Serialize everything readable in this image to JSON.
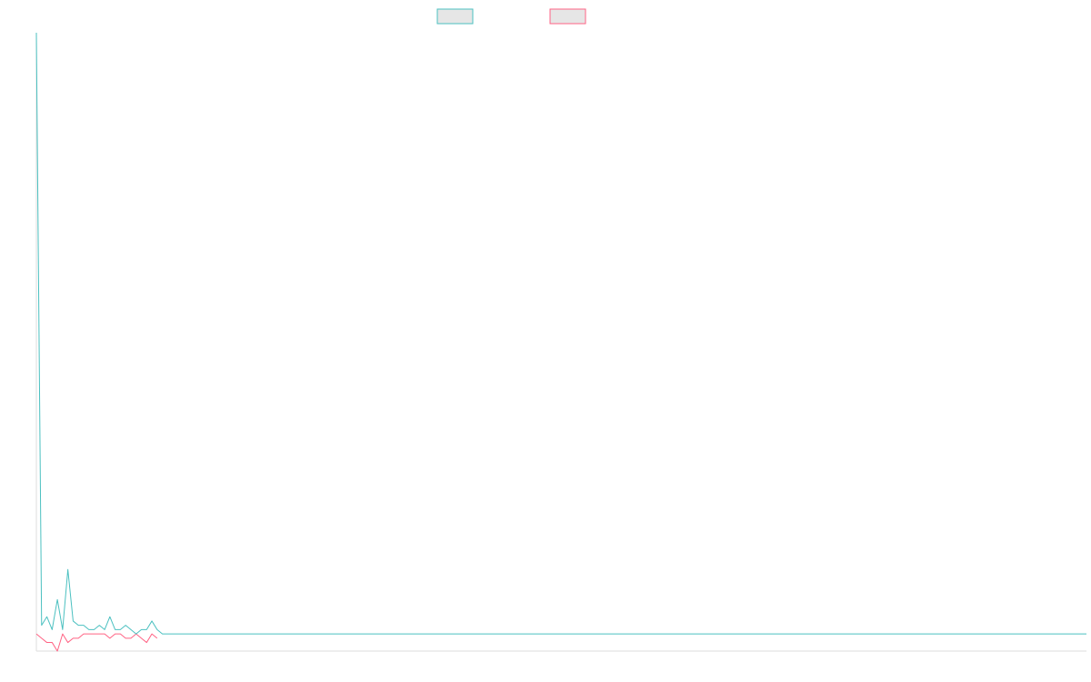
{
  "colors": {
    "series_a": "#4bc0c0",
    "series_b": "#ff6384",
    "legend_fill": "#e6e6e6",
    "axis": "#dddddd"
  },
  "legend": {
    "placement": "top-center",
    "items": [
      {
        "color": "#4bc0c0",
        "label": ""
      },
      {
        "color": "#ff6384",
        "label": ""
      }
    ]
  },
  "chart_data": {
    "type": "line",
    "title": "",
    "xlabel": "",
    "ylabel": "",
    "grid": false,
    "legend_placement": "top-center",
    "xlim": [
      0,
      200
    ],
    "ylim": [
      -4,
      140
    ],
    "series": [
      {
        "color": "#4bc0c0",
        "values": [
          140,
          2,
          4,
          1,
          8,
          1,
          15,
          3,
          2,
          2,
          1,
          1,
          2,
          1,
          4,
          1,
          1,
          2,
          1,
          0,
          1,
          1,
          3,
          1,
          0,
          0,
          0,
          0,
          0,
          0,
          0,
          0,
          0,
          0,
          0,
          0,
          0,
          0,
          0,
          0,
          0,
          0,
          0,
          0,
          0,
          0,
          0,
          0,
          0,
          0,
          0,
          0,
          0,
          0,
          0,
          0,
          0,
          0,
          0,
          0,
          0,
          0,
          0,
          0,
          0,
          0,
          0,
          0,
          0,
          0,
          0,
          0,
          0,
          0,
          0,
          0,
          0,
          0,
          0,
          0,
          0,
          0,
          0,
          0,
          0,
          0,
          0,
          0,
          0,
          0,
          0,
          0,
          0,
          0,
          0,
          0,
          0,
          0,
          0,
          0,
          0,
          0,
          0,
          0,
          0,
          0,
          0,
          0,
          0,
          0,
          0,
          0,
          0,
          0,
          0,
          0,
          0,
          0,
          0,
          0,
          0,
          0,
          0,
          0,
          0,
          0,
          0,
          0,
          0,
          0,
          0,
          0,
          0,
          0,
          0,
          0,
          0,
          0,
          0,
          0,
          0,
          0,
          0,
          0,
          0,
          0,
          0,
          0,
          0,
          0,
          0,
          0,
          0,
          0,
          0,
          0,
          0,
          0,
          0,
          0,
          0,
          0,
          0,
          0,
          0,
          0,
          0,
          0,
          0,
          0,
          0,
          0,
          0,
          0,
          0,
          0,
          0,
          0,
          0,
          0,
          0,
          0,
          0,
          0,
          0,
          0,
          0,
          0,
          0,
          0,
          0,
          0,
          0,
          0,
          0,
          0,
          0,
          0,
          0,
          0,
          0
        ]
      },
      {
        "color": "#ff6384",
        "values": [
          0,
          -1,
          -2,
          -2,
          -4,
          0,
          -2,
          -1,
          -1,
          0,
          0,
          0,
          0,
          0,
          -1,
          0,
          0,
          -1,
          -1,
          0,
          -1,
          -2,
          0,
          -1
        ]
      }
    ]
  }
}
